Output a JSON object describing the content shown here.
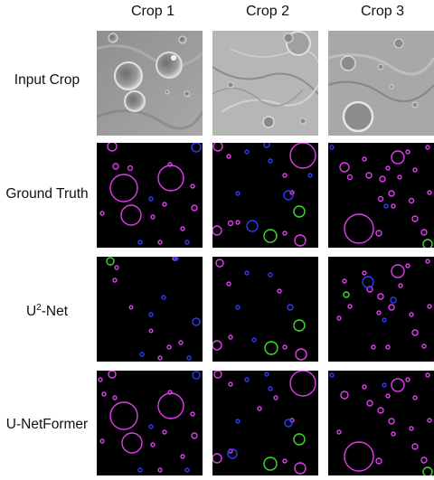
{
  "columns": [
    "Crop 1",
    "Crop 2",
    "Crop 3"
  ],
  "rows": [
    {
      "label": "Input Crop"
    },
    {
      "label": "Ground Truth"
    },
    {
      "label_main": "U",
      "label_sup": "2",
      "label_rest": "-Net"
    },
    {
      "label": "U-NetFormer"
    }
  ],
  "colors": {
    "magenta": "#e23cf0",
    "blue": "#2d3cf5",
    "green": "#3ddc2e",
    "panel_bg": "#000000"
  }
}
